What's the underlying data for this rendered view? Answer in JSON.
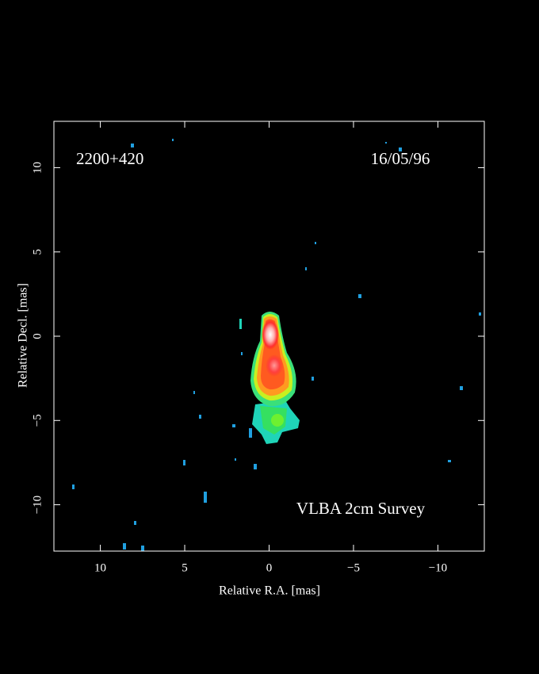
{
  "chart_data": {
    "type": "image",
    "annotations": [
      "2200+420",
      "16/05/96",
      "VLBA 2cm Survey"
    ],
    "xlabel": "Relative R.A. [mas]",
    "ylabel": "Relative Decl. [mas]",
    "xlim": [
      12.75,
      -12.75
    ],
    "ylim": [
      -12.75,
      12.75
    ],
    "xticks": [
      10,
      5,
      0,
      {
        "value": -5,
        "label": "−5"
      },
      {
        "value": -10,
        "label": "−10"
      }
    ],
    "yticks": [
      {
        "value": -10,
        "label": "−10"
      },
      {
        "value": -5,
        "label": "−5"
      },
      0,
      5,
      10
    ]
  }
}
